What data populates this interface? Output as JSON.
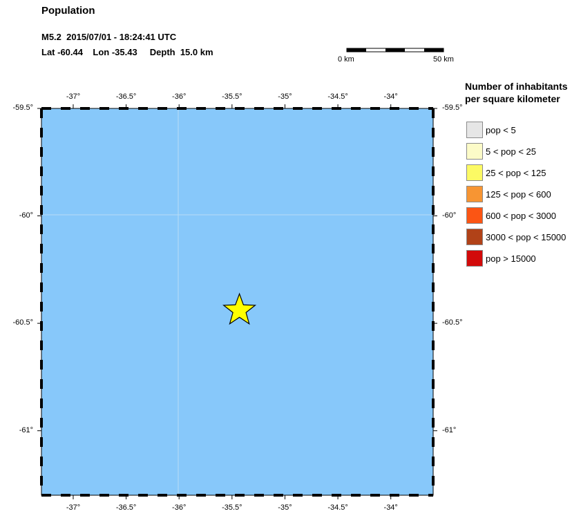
{
  "header": {
    "title": "Population",
    "event_line": "M5.2  2015/07/01 - 18:24:41 UTC",
    "location_line": "Lat -60.44    Lon -35.43     Depth  15.0 km"
  },
  "scale_bar": {
    "start_label": "0 km",
    "end_label": "50 km"
  },
  "map": {
    "ocean_color": "#87c8fa",
    "lon_range": [
      -37.3,
      -33.6
    ],
    "lat_range": [
      -61.3,
      -59.5
    ],
    "lon_ticks": [
      -37,
      -36.5,
      -36,
      -35.5,
      -35,
      -34.5,
      -34
    ],
    "lat_ticks": [
      -59.5,
      -60,
      -60.5,
      -61
    ],
    "lon_tick_labels": [
      "-37°",
      "-36.5°",
      "-36°",
      "-35.5°",
      "-35°",
      "-34.5°",
      "-34°"
    ],
    "lat_tick_labels": [
      "-59.5°",
      "-60°",
      "-60.5°",
      "-61°"
    ],
    "epicenter": {
      "lon": -35.43,
      "lat": -60.44,
      "marker": "star-icon",
      "color": "#ffff00"
    }
  },
  "legend": {
    "title_line1": "Number of inhabitants",
    "title_line2": "per square kilometer",
    "items": [
      {
        "label": "pop < 5",
        "color": "#e6e6e6"
      },
      {
        "label": "5 < pop < 25",
        "color": "#fcfbc8"
      },
      {
        "label": "25 < pop < 125",
        "color": "#fcfa64"
      },
      {
        "label": "125 < pop < 600",
        "color": "#f79533"
      },
      {
        "label": "600 < pop < 3000",
        "color": "#fb5514"
      },
      {
        "label": "3000 < pop < 15000",
        "color": "#b14218"
      },
      {
        "label": "pop > 15000",
        "color": "#d20a0a"
      }
    ]
  }
}
